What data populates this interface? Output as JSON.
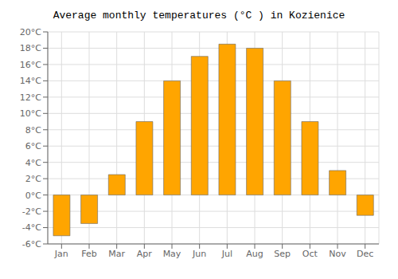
{
  "chart_data": {
    "type": "bar",
    "title": "Average monthly temperatures (°C ) in Kozienice",
    "categories": [
      "Jan",
      "Feb",
      "Mar",
      "Apr",
      "May",
      "Jun",
      "Jul",
      "Aug",
      "Sep",
      "Oct",
      "Nov",
      "Dec"
    ],
    "values": [
      -5.0,
      -3.5,
      2.5,
      9.0,
      14.0,
      17.0,
      18.5,
      18.0,
      14.0,
      9.0,
      3.0,
      -2.5
    ],
    "color": "#FFA500",
    "ylim": [
      -6,
      20
    ],
    "yticks": [
      {
        "value": -6,
        "label": "-6°C"
      },
      {
        "value": -4,
        "label": "-4°C"
      },
      {
        "value": -2,
        "label": "-2°C"
      },
      {
        "value": 0,
        "label": "0°C"
      },
      {
        "value": 2,
        "label": "2°C"
      },
      {
        "value": 4,
        "label": "4°C"
      },
      {
        "value": 6,
        "label": "6°C"
      },
      {
        "value": 8,
        "label": "8°C"
      },
      {
        "value": 10,
        "label": "10°C"
      },
      {
        "value": 12,
        "label": "12°C"
      },
      {
        "value": 14,
        "label": "14°C"
      },
      {
        "value": 16,
        "label": "16°C"
      },
      {
        "value": 18,
        "label": "18°C"
      },
      {
        "value": 20,
        "label": "20°C"
      }
    ],
    "grid": true
  }
}
